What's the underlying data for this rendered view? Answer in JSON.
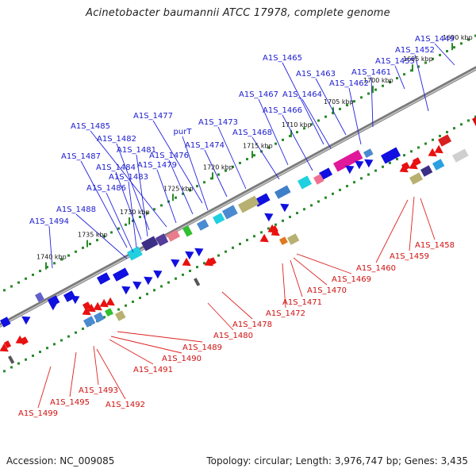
{
  "title": "Acinetobacter baumannii ATCC 17978, complete genome",
  "accession": "Accession: NC_009085",
  "summary": "Topology: circular; Length: 3,976,747 bp; Genes: 3,435",
  "colors": {
    "forward_label": "#1a1ad0",
    "reverse_label": "#d01010",
    "backbone": "#8c8c8c",
    "tick": "#2a8a2a",
    "forward_gene": "#1010e0",
    "reverse_gene": "#e81010"
  },
  "ticks": [
    "1690 kbp",
    "1695 kbp",
    "1700 kbp",
    "1705 kbp",
    "1710 kbp",
    "1715 kbp",
    "1720 kbp",
    "1725 kbp",
    "1730 kbp",
    "1735 kbp",
    "1740 kbp"
  ],
  "forward_labels": [
    "A1S_1449",
    "A1S_1452",
    "A1S_1455",
    "A1S_1461",
    "A1S_1462",
    "A1S_1463",
    "A1S_1465",
    "A1S_1464",
    "A1S_1467",
    "A1S_1466",
    "A1S_1468",
    "A1S_1473",
    "A1S_1474",
    "A1S_1477",
    "purT",
    "A1S_1476",
    "A1S_1485",
    "A1S_1482",
    "A1S_1481",
    "A1S_1479",
    "A1S_1487",
    "A1S_1484",
    "A1S_1483",
    "A1S_1486",
    "A1S_1488",
    "A1S_1494"
  ],
  "reverse_labels": [
    "A1S_1458",
    "A1S_1459",
    "A1S_1460",
    "A1S_1469",
    "A1S_1470",
    "A1S_1471",
    "A1S_1472",
    "A1S_1478",
    "A1S_1480",
    "A1S_1489",
    "A1S_1490",
    "A1S_1491",
    "A1S_1493",
    "A1S_1492",
    "A1S_1495",
    "A1S_1499"
  ]
}
